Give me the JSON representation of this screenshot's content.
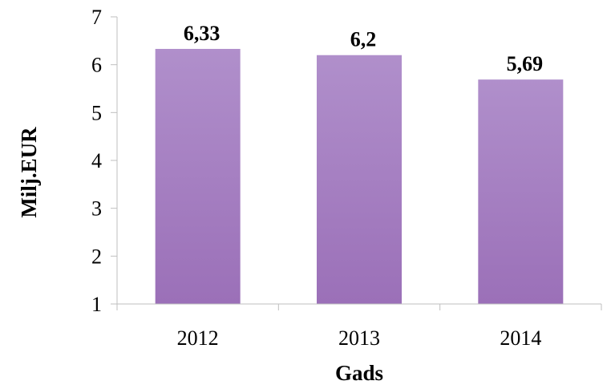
{
  "chart_data": {
    "type": "bar",
    "categories": [
      "2012",
      "2013",
      "2014"
    ],
    "values": [
      6.33,
      6.2,
      5.69
    ],
    "data_labels": [
      "6,33",
      "6,2",
      "5,69"
    ],
    "title": "",
    "xlabel": "Gads",
    "ylabel": "Milj.EUR",
    "ylim": [
      1,
      7
    ],
    "yticks": [
      1,
      2,
      3,
      4,
      5,
      6,
      7
    ],
    "ytick_labels": [
      "1",
      "2",
      "3",
      "4",
      "5",
      "6",
      "7"
    ],
    "grid": false,
    "legend": "none",
    "bar_color_top": "#b08fcb",
    "bar_color_bottom": "#9b70b8"
  }
}
